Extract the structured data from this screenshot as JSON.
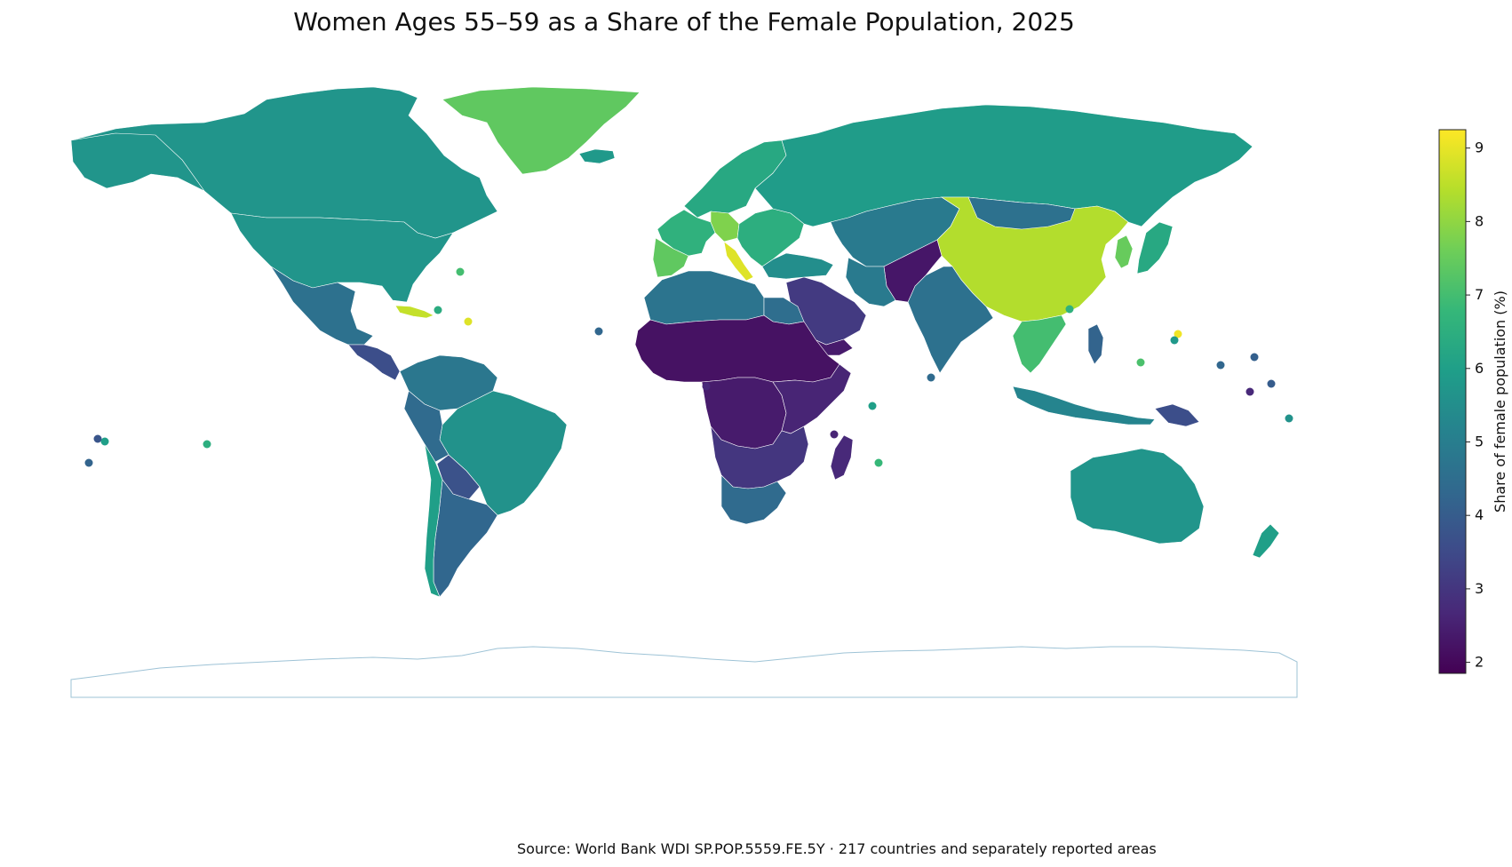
{
  "title": "Women Ages 55–59 as a Share of the Female Population, 2025",
  "source": "Source: World Bank WDI SP.POP.5559.FE.5Y · 217 countries and separately reported areas",
  "colorbar": {
    "label": "Share of female population (%)",
    "min": 1.85,
    "max": 9.25,
    "ticks": [
      "2",
      "3",
      "4",
      "5",
      "6",
      "7",
      "8",
      "9"
    ],
    "colormap": [
      "#440154",
      "#482878",
      "#3e4a89",
      "#31688e",
      "#26828e",
      "#1f9e89",
      "#35b779",
      "#6ece58",
      "#b5de2b",
      "#fde725"
    ]
  },
  "colors": {
    "ocean": "#ffffff",
    "antarctica_outline": "#9ec3d6",
    "border": "#ffffff"
  },
  "map_data": {
    "regions": [
      {
        "name": "Canada",
        "value": 5.7
      },
      {
        "name": "Alaska (USA)",
        "value": 5.7
      },
      {
        "name": "Greenland",
        "value": 7.4
      },
      {
        "name": "United States",
        "value": 5.7
      },
      {
        "name": "Mexico",
        "value": 4.6
      },
      {
        "name": "Central America",
        "value": 3.6
      },
      {
        "name": "Cuba",
        "value": 8.6
      },
      {
        "name": "Colombia / Venezuela",
        "value": 4.8
      },
      {
        "name": "Brazil",
        "value": 5.6
      },
      {
        "name": "Peru",
        "value": 4.4
      },
      {
        "name": "Bolivia",
        "value": 3.7
      },
      {
        "name": "Argentina",
        "value": 4.3
      },
      {
        "name": "Chile",
        "value": 6.0
      },
      {
        "name": "Iceland",
        "value": 5.8
      },
      {
        "name": "Scandinavia",
        "value": 6.3
      },
      {
        "name": "Western Europe",
        "value": 6.6
      },
      {
        "name": "Germany",
        "value": 7.8
      },
      {
        "name": "Spain / Portugal",
        "value": 7.4
      },
      {
        "name": "Italy",
        "value": 8.9
      },
      {
        "name": "Eastern Europe",
        "value": 6.5
      },
      {
        "name": "Russia",
        "value": 5.9
      },
      {
        "name": "Kazakhstan / Central Asia",
        "value": 4.9
      },
      {
        "name": "China",
        "value": 8.4
      },
      {
        "name": "Mongolia",
        "value": 4.6
      },
      {
        "name": "Korea",
        "value": 7.5
      },
      {
        "name": "Japan",
        "value": 6.3
      },
      {
        "name": "India",
        "value": 4.6
      },
      {
        "name": "Afghanistan / Pakistan",
        "value": 2.3
      },
      {
        "name": "Iran",
        "value": 4.9
      },
      {
        "name": "Arabian Peninsula",
        "value": 3.1
      },
      {
        "name": "Yemen",
        "value": 2.4
      },
      {
        "name": "Turkey",
        "value": 5.5
      },
      {
        "name": "North Africa",
        "value": 4.7
      },
      {
        "name": "Egypt",
        "value": 4.5
      },
      {
        "name": "Sahel / West Africa",
        "value": 2.2
      },
      {
        "name": "Central Africa",
        "value": 2.4
      },
      {
        "name": "East Africa",
        "value": 2.6
      },
      {
        "name": "Southern Africa",
        "value": 3.0
      },
      {
        "name": "South Africa",
        "value": 4.4
      },
      {
        "name": "Madagascar",
        "value": 2.7
      },
      {
        "name": "Southeast Asia (Thailand / Vietnam)",
        "value": 7.0
      },
      {
        "name": "Indonesia",
        "value": 5.2
      },
      {
        "name": "Philippines",
        "value": 4.2
      },
      {
        "name": "Papua New Guinea",
        "value": 3.6
      },
      {
        "name": "Australia",
        "value": 5.7
      },
      {
        "name": "New Zealand",
        "value": 6.0
      }
    ],
    "small_areas": [
      {
        "name": "Bermuda",
        "value": 7.0
      },
      {
        "name": "Bahamas",
        "value": 6.4
      },
      {
        "name": "Puerto Rico",
        "value": 8.9
      },
      {
        "name": "Cabo Verde",
        "value": 4.3
      },
      {
        "name": "Sao Tome and Principe",
        "value": 2.7
      },
      {
        "name": "Seychelles",
        "value": 6.0
      },
      {
        "name": "Comoros",
        "value": 2.6
      },
      {
        "name": "Mauritius",
        "value": 6.8
      },
      {
        "name": "Maldives",
        "value": 4.4
      },
      {
        "name": "Hong Kong",
        "value": 6.6
      },
      {
        "name": "Guam",
        "value": 9.1
      },
      {
        "name": "Northern Mariana Islands",
        "value": 5.8
      },
      {
        "name": "Palau",
        "value": 7.1
      },
      {
        "name": "Marshall Islands",
        "value": 4.3
      },
      {
        "name": "Nauru",
        "value": 2.7
      },
      {
        "name": "Kiribati",
        "value": 4.1
      },
      {
        "name": "Tuvalu",
        "value": 4.0
      },
      {
        "name": "Samoa",
        "value": 5.6
      },
      {
        "name": "Tonga",
        "value": 4.2
      },
      {
        "name": "Hawaii area",
        "value": 3.8
      },
      {
        "name": "American Samoa",
        "value": 6.0
      },
      {
        "name": "French Polynesia",
        "value": 6.5
      }
    ]
  }
}
